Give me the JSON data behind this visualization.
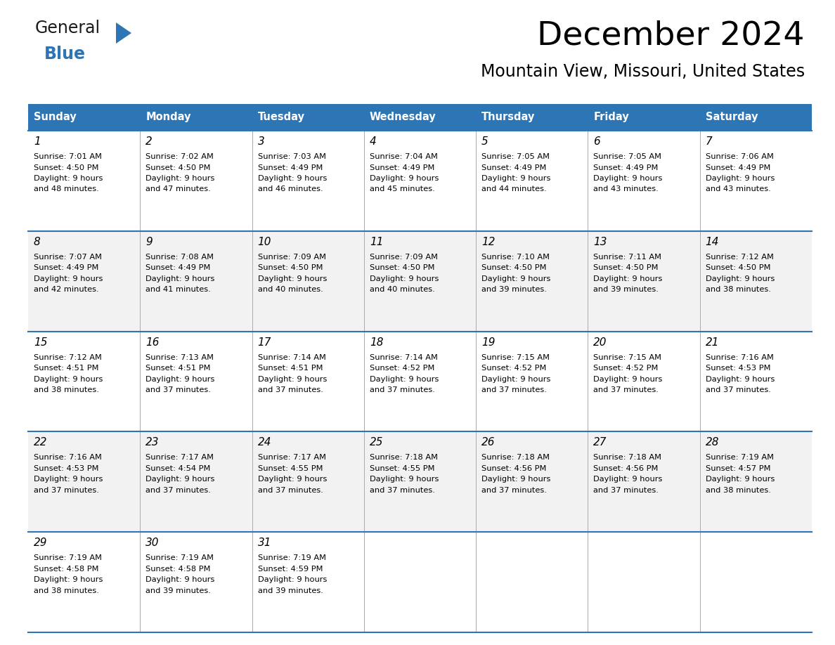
{
  "title": "December 2024",
  "subtitle": "Mountain View, Missouri, United States",
  "header_color": "#2E75B6",
  "header_text_color": "#FFFFFF",
  "cell_bg_color_even": "#FFFFFF",
  "cell_bg_color_odd": "#F2F2F2",
  "border_color": "#2E75B6",
  "grid_color": "#AAAAAA",
  "text_color": "#000000",
  "days_of_week": [
    "Sunday",
    "Monday",
    "Tuesday",
    "Wednesday",
    "Thursday",
    "Friday",
    "Saturday"
  ],
  "weeks": [
    [
      {
        "day": "1",
        "sunrise": "7:01 AM",
        "sunset": "4:50 PM",
        "daylight": "9 hours",
        "daylight2": "and 48 minutes."
      },
      {
        "day": "2",
        "sunrise": "7:02 AM",
        "sunset": "4:50 PM",
        "daylight": "9 hours",
        "daylight2": "and 47 minutes."
      },
      {
        "day": "3",
        "sunrise": "7:03 AM",
        "sunset": "4:49 PM",
        "daylight": "9 hours",
        "daylight2": "and 46 minutes."
      },
      {
        "day": "4",
        "sunrise": "7:04 AM",
        "sunset": "4:49 PM",
        "daylight": "9 hours",
        "daylight2": "and 45 minutes."
      },
      {
        "day": "5",
        "sunrise": "7:05 AM",
        "sunset": "4:49 PM",
        "daylight": "9 hours",
        "daylight2": "and 44 minutes."
      },
      {
        "day": "6",
        "sunrise": "7:05 AM",
        "sunset": "4:49 PM",
        "daylight": "9 hours",
        "daylight2": "and 43 minutes."
      },
      {
        "day": "7",
        "sunrise": "7:06 AM",
        "sunset": "4:49 PM",
        "daylight": "9 hours",
        "daylight2": "and 43 minutes."
      }
    ],
    [
      {
        "day": "8",
        "sunrise": "7:07 AM",
        "sunset": "4:49 PM",
        "daylight": "9 hours",
        "daylight2": "and 42 minutes."
      },
      {
        "day": "9",
        "sunrise": "7:08 AM",
        "sunset": "4:49 PM",
        "daylight": "9 hours",
        "daylight2": "and 41 minutes."
      },
      {
        "day": "10",
        "sunrise": "7:09 AM",
        "sunset": "4:50 PM",
        "daylight": "9 hours",
        "daylight2": "and 40 minutes."
      },
      {
        "day": "11",
        "sunrise": "7:09 AM",
        "sunset": "4:50 PM",
        "daylight": "9 hours",
        "daylight2": "and 40 minutes."
      },
      {
        "day": "12",
        "sunrise": "7:10 AM",
        "sunset": "4:50 PM",
        "daylight": "9 hours",
        "daylight2": "and 39 minutes."
      },
      {
        "day": "13",
        "sunrise": "7:11 AM",
        "sunset": "4:50 PM",
        "daylight": "9 hours",
        "daylight2": "and 39 minutes."
      },
      {
        "day": "14",
        "sunrise": "7:12 AM",
        "sunset": "4:50 PM",
        "daylight": "9 hours",
        "daylight2": "and 38 minutes."
      }
    ],
    [
      {
        "day": "15",
        "sunrise": "7:12 AM",
        "sunset": "4:51 PM",
        "daylight": "9 hours",
        "daylight2": "and 38 minutes."
      },
      {
        "day": "16",
        "sunrise": "7:13 AM",
        "sunset": "4:51 PM",
        "daylight": "9 hours",
        "daylight2": "and 37 minutes."
      },
      {
        "day": "17",
        "sunrise": "7:14 AM",
        "sunset": "4:51 PM",
        "daylight": "9 hours",
        "daylight2": "and 37 minutes."
      },
      {
        "day": "18",
        "sunrise": "7:14 AM",
        "sunset": "4:52 PM",
        "daylight": "9 hours",
        "daylight2": "and 37 minutes."
      },
      {
        "day": "19",
        "sunrise": "7:15 AM",
        "sunset": "4:52 PM",
        "daylight": "9 hours",
        "daylight2": "and 37 minutes."
      },
      {
        "day": "20",
        "sunrise": "7:15 AM",
        "sunset": "4:52 PM",
        "daylight": "9 hours",
        "daylight2": "and 37 minutes."
      },
      {
        "day": "21",
        "sunrise": "7:16 AM",
        "sunset": "4:53 PM",
        "daylight": "9 hours",
        "daylight2": "and 37 minutes."
      }
    ],
    [
      {
        "day": "22",
        "sunrise": "7:16 AM",
        "sunset": "4:53 PM",
        "daylight": "9 hours",
        "daylight2": "and 37 minutes."
      },
      {
        "day": "23",
        "sunrise": "7:17 AM",
        "sunset": "4:54 PM",
        "daylight": "9 hours",
        "daylight2": "and 37 minutes."
      },
      {
        "day": "24",
        "sunrise": "7:17 AM",
        "sunset": "4:55 PM",
        "daylight": "9 hours",
        "daylight2": "and 37 minutes."
      },
      {
        "day": "25",
        "sunrise": "7:18 AM",
        "sunset": "4:55 PM",
        "daylight": "9 hours",
        "daylight2": "and 37 minutes."
      },
      {
        "day": "26",
        "sunrise": "7:18 AM",
        "sunset": "4:56 PM",
        "daylight": "9 hours",
        "daylight2": "and 37 minutes."
      },
      {
        "day": "27",
        "sunrise": "7:18 AM",
        "sunset": "4:56 PM",
        "daylight": "9 hours",
        "daylight2": "and 37 minutes."
      },
      {
        "day": "28",
        "sunrise": "7:19 AM",
        "sunset": "4:57 PM",
        "daylight": "9 hours",
        "daylight2": "and 38 minutes."
      }
    ],
    [
      {
        "day": "29",
        "sunrise": "7:19 AM",
        "sunset": "4:58 PM",
        "daylight": "9 hours",
        "daylight2": "and 38 minutes."
      },
      {
        "day": "30",
        "sunrise": "7:19 AM",
        "sunset": "4:58 PM",
        "daylight": "9 hours",
        "daylight2": "and 39 minutes."
      },
      {
        "day": "31",
        "sunrise": "7:19 AM",
        "sunset": "4:59 PM",
        "daylight": "9 hours",
        "daylight2": "and 39 minutes."
      },
      null,
      null,
      null,
      null
    ]
  ]
}
